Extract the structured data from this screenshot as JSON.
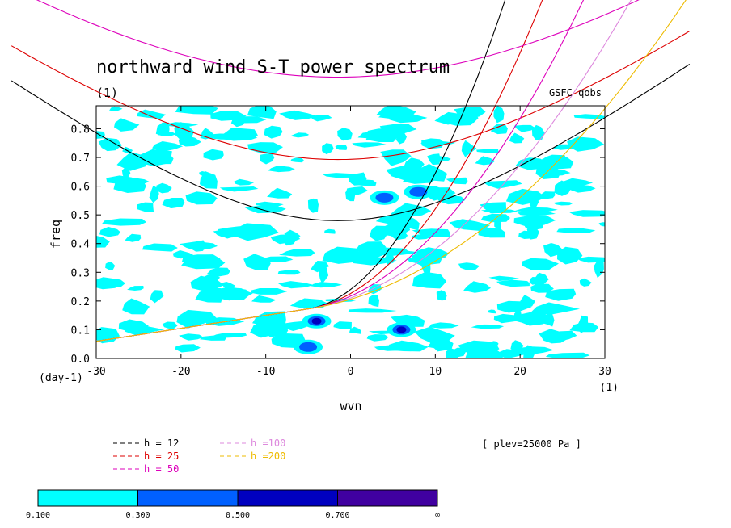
{
  "chart_data": {
    "type": "contour",
    "title": "northward wind S-T power spectrum",
    "subtitle": "(1)",
    "source_label": "GSFC_qobs",
    "xlabel": "wvn",
    "x_unit": "(1)",
    "ylabel": "freq",
    "y_unit": "(day-1)",
    "xlim": [
      -30,
      30
    ],
    "ylim": [
      0,
      0.88
    ],
    "x_ticks": [
      "-30",
      "-20",
      "-10",
      "0",
      "10",
      "20",
      "30"
    ],
    "y_ticks": [
      "0.0",
      "0.1",
      "0.2",
      "0.3",
      "0.4",
      "0.5",
      "0.6",
      "0.7",
      "0.8"
    ],
    "level_annotation": "[ plev=25000 Pa ]",
    "dispersion_curves": [
      {
        "label": "h = 12",
        "h": 12,
        "color": "#000000"
      },
      {
        "label": "h = 25",
        "h": 25,
        "color": "#dd0000"
      },
      {
        "label": "h = 50",
        "h": 50,
        "color": "#dd00bb"
      },
      {
        "label": "h =100",
        "h": 100,
        "color": "#dd88dd"
      },
      {
        "label": "h =200",
        "h": 200,
        "color": "#eebb00"
      }
    ],
    "colorbar": {
      "boundaries": [
        "0.100",
        "0.300",
        "0.500",
        "0.700",
        "∞"
      ],
      "colors": [
        "#00ffff",
        "#0060ff",
        "#0000c0",
        "#4000a0"
      ]
    },
    "notable_maxima": [
      {
        "wvn": 6,
        "freq": 0.1,
        "level": "0.500-0.700"
      },
      {
        "wvn": -4,
        "freq": 0.13,
        "level": "0.500-0.700"
      },
      {
        "wvn": 8,
        "freq": 0.58,
        "level": "0.300-0.500"
      },
      {
        "wvn": 4,
        "freq": 0.56,
        "level": "0.300-0.500"
      },
      {
        "wvn": -5,
        "freq": 0.04,
        "level": "0.300-0.500"
      }
    ]
  }
}
